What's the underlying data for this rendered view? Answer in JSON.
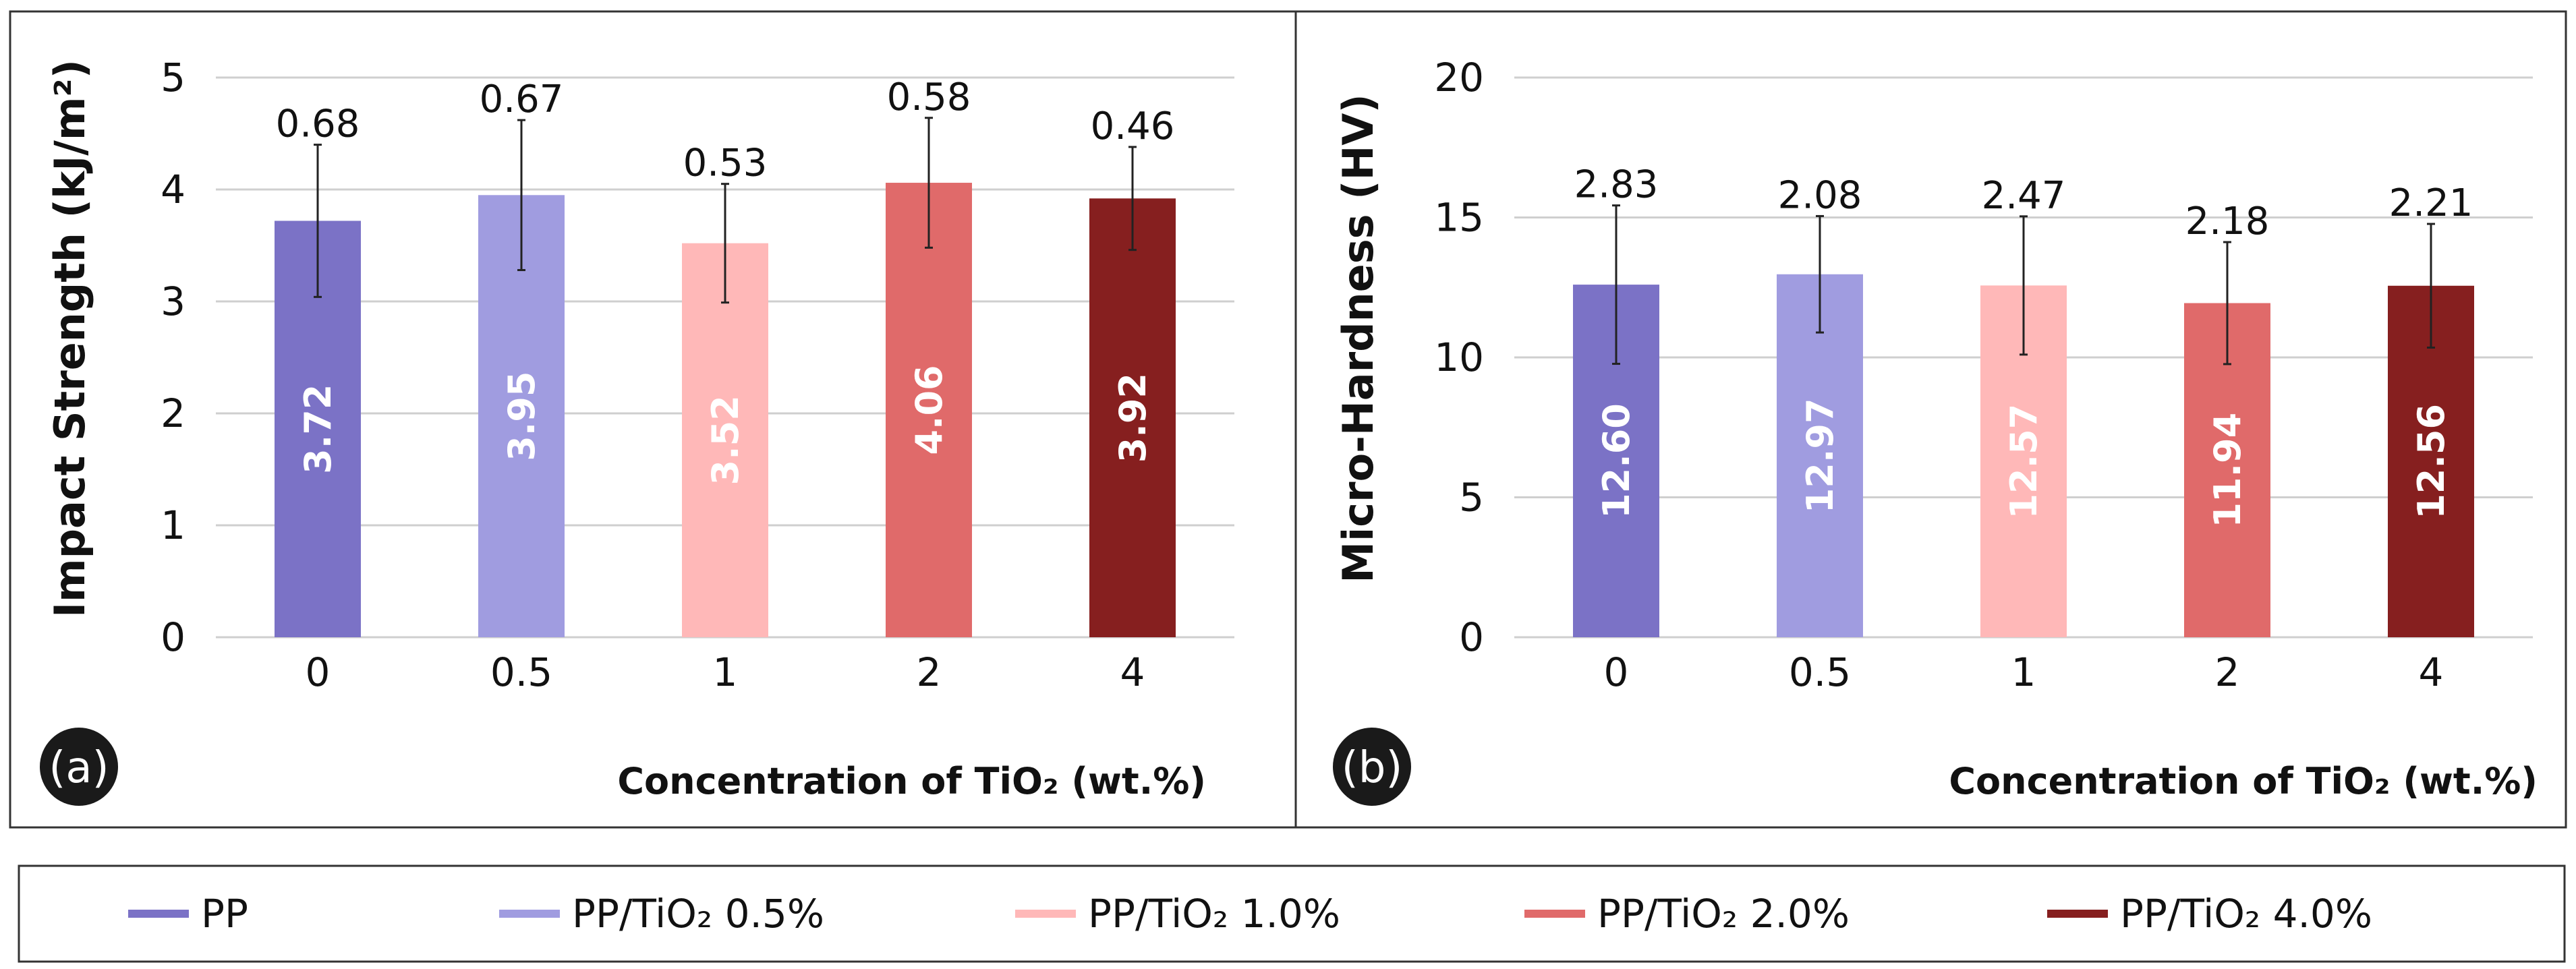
{
  "legend": [
    {
      "label": "PP",
      "color": "#7b72c6"
    },
    {
      "label": "PP/TiO₂ 0.5%",
      "color": "#a09ce0"
    },
    {
      "label": "PP/TiO₂ 1.0%",
      "color": "#ffb8b8"
    },
    {
      "label": "PP/TiO₂ 2.0%",
      "color": "#e06a6a"
    },
    {
      "label": "PP/TiO₂ 4.0%",
      "color": "#861f1f"
    }
  ],
  "chart_data": [
    {
      "panel": "(a)",
      "type": "bar",
      "categories": [
        "0",
        "0.5",
        "1",
        "2",
        "4"
      ],
      "series": [
        {
          "name": "Impact Strength",
          "values": [
            3.72,
            3.95,
            3.52,
            4.06,
            3.92
          ]
        }
      ],
      "value_labels": [
        "3.72",
        "3.95",
        "3.52",
        "4.06",
        "3.92"
      ],
      "errors": [
        0.68,
        0.67,
        0.53,
        0.58,
        0.46
      ],
      "error_labels": [
        "0.68",
        "0.67",
        "0.53",
        "0.58",
        "0.46"
      ],
      "ylabel": "Impact Strength (kJ/m²)",
      "xlabel": "Concentration of TiO₂ (wt.%)",
      "ylim": [
        0,
        5
      ],
      "yticks": [
        "0",
        "1",
        "2",
        "3",
        "4",
        "5"
      ],
      "grid": true,
      "colors": [
        "#7b72c6",
        "#a09ce0",
        "#ffb8b8",
        "#e06a6a",
        "#861f1f"
      ]
    },
    {
      "panel": "(b)",
      "type": "bar",
      "categories": [
        "0",
        "0.5",
        "1",
        "2",
        "4"
      ],
      "series": [
        {
          "name": "Micro-Hardness",
          "values": [
            12.6,
            12.97,
            12.57,
            11.94,
            12.56
          ]
        }
      ],
      "value_labels": [
        "12.60",
        "12.97",
        "12.57",
        "11.94",
        "12.56"
      ],
      "errors": [
        2.83,
        2.08,
        2.47,
        2.18,
        2.21
      ],
      "error_labels": [
        "2.83",
        "2.08",
        "2.47",
        "2.18",
        "2.21"
      ],
      "ylabel": "Micro-Hardness (HV)",
      "xlabel": "Concentration of TiO₂ (wt.%)",
      "ylim": [
        0,
        20
      ],
      "yticks": [
        "0",
        "5",
        "10",
        "15",
        "20"
      ],
      "grid": true,
      "colors": [
        "#7b72c6",
        "#a09ce0",
        "#ffb8b8",
        "#e06a6a",
        "#861f1f"
      ]
    }
  ]
}
